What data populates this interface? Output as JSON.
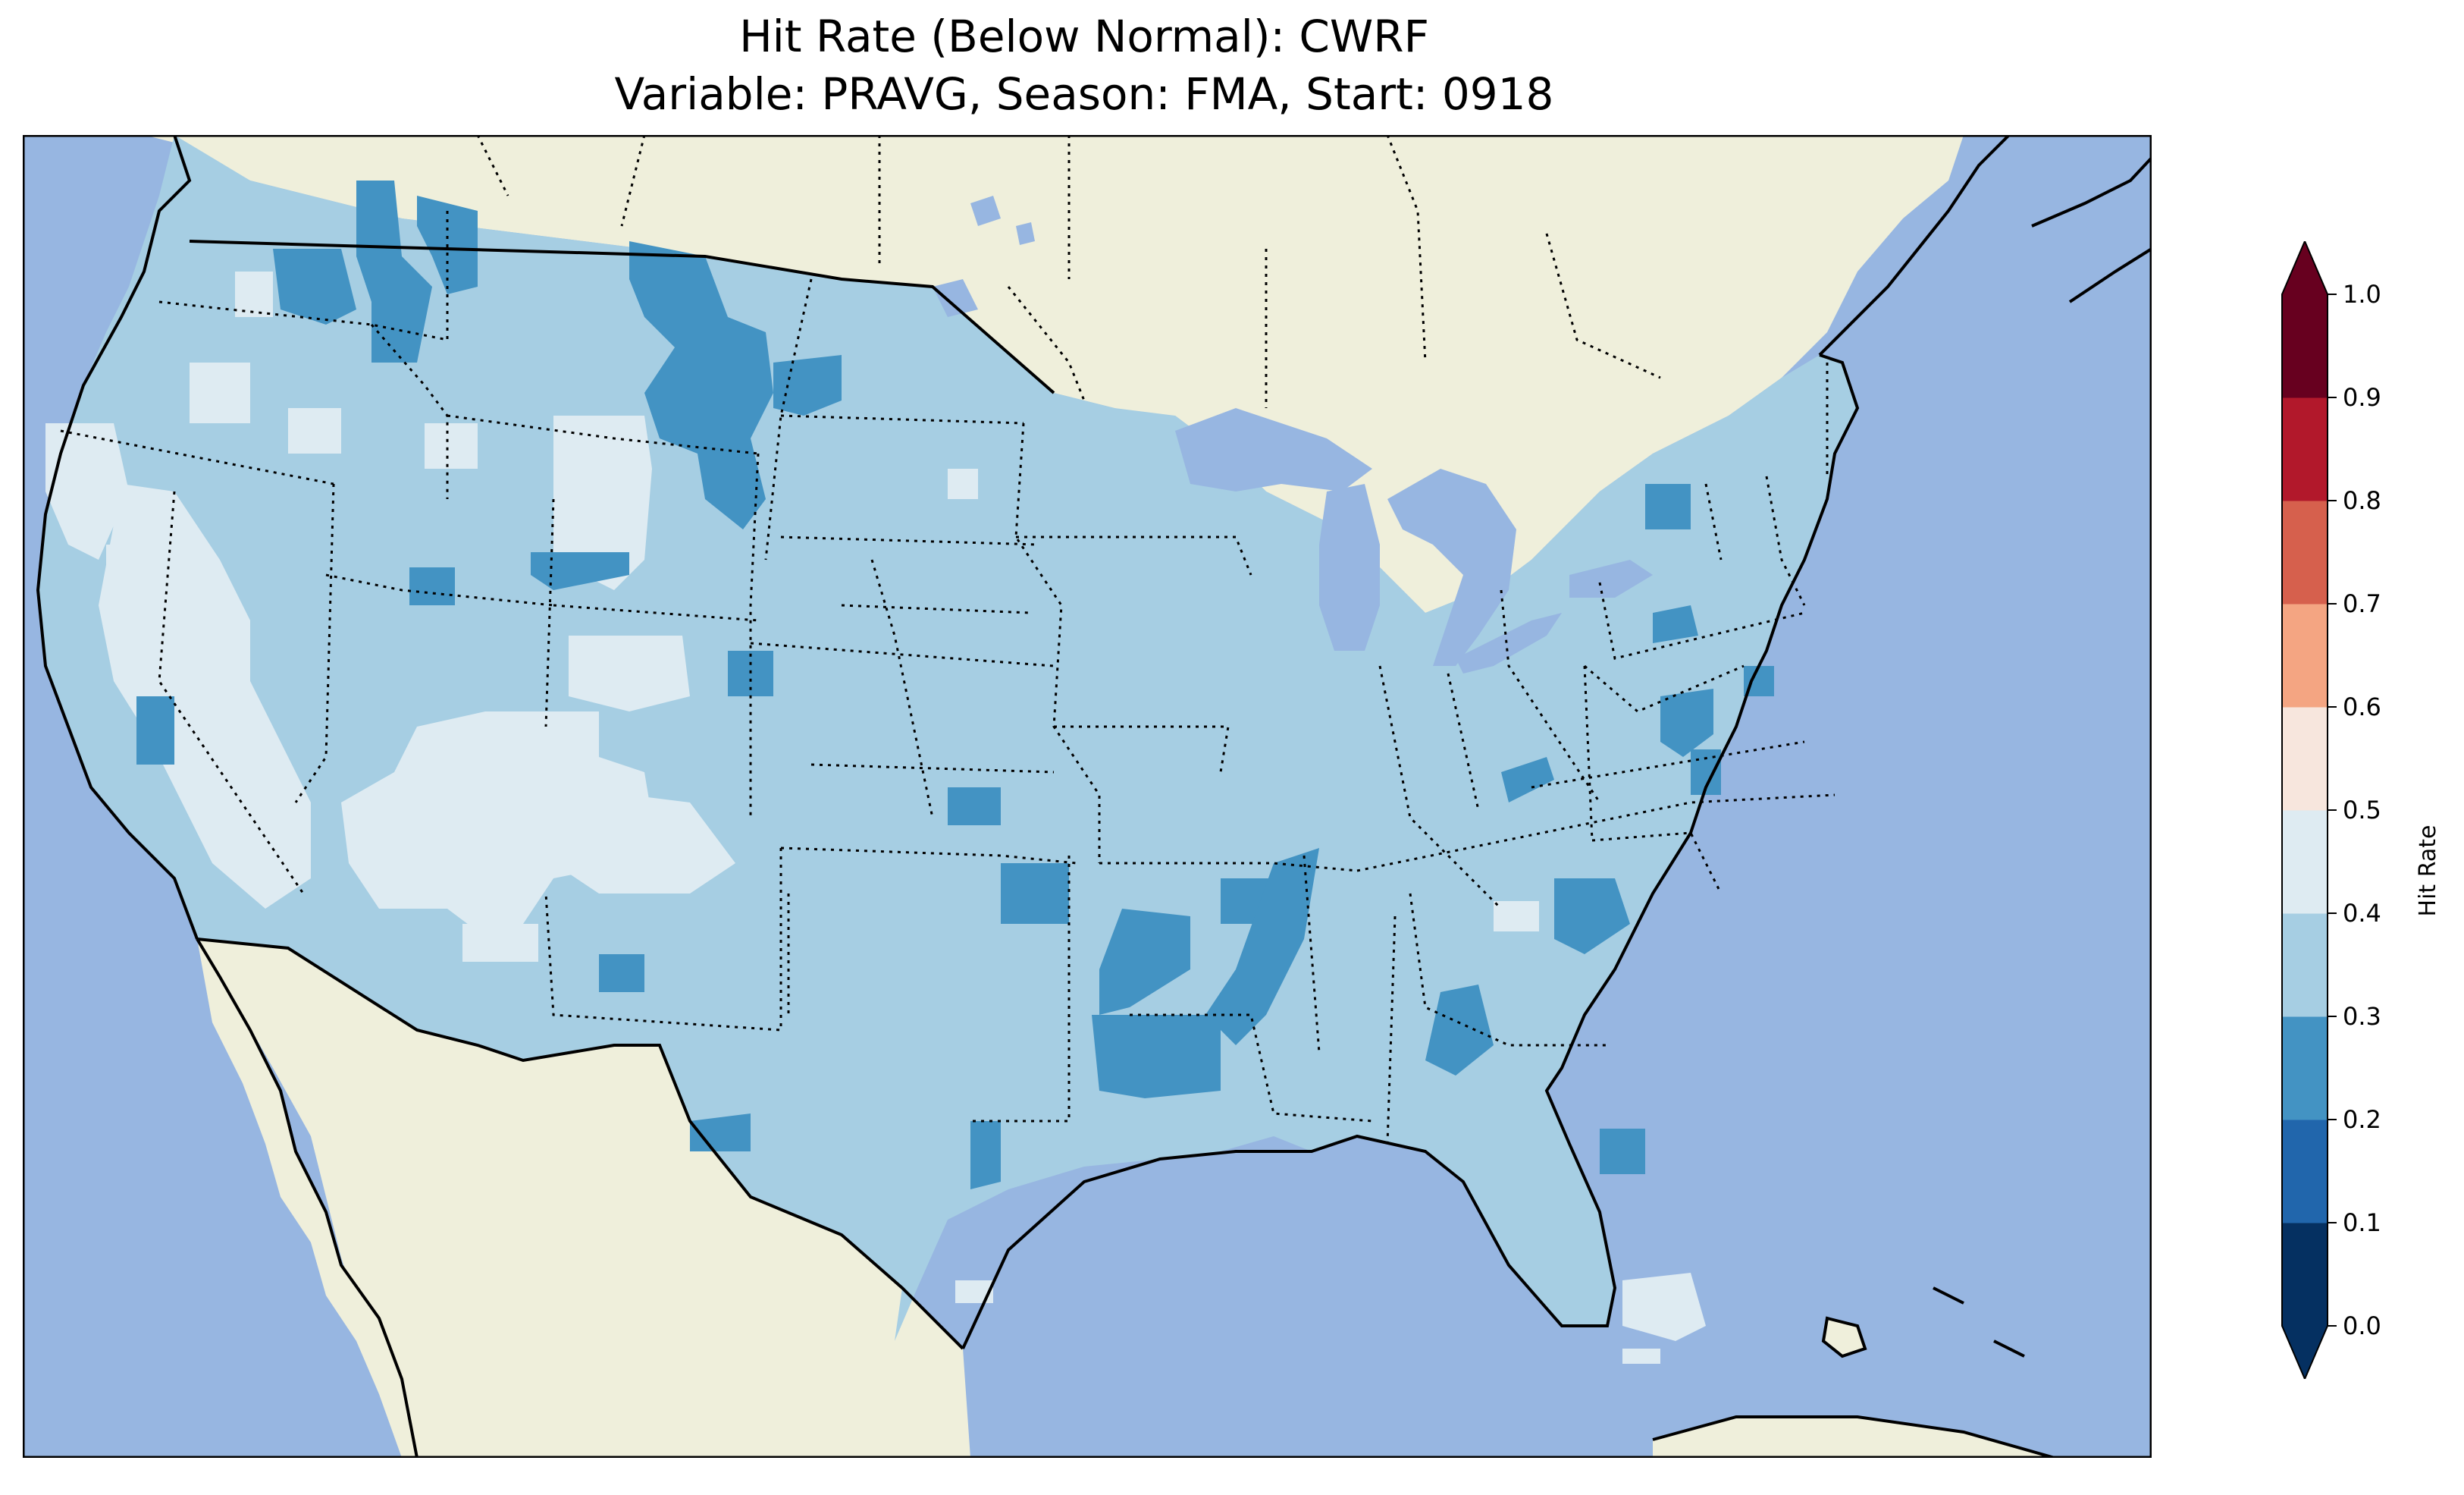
{
  "title": {
    "line1": "Hit Rate (Below Normal): CWRF",
    "line2": "Variable: PRAVG, Season: FMA, Start: 0918"
  },
  "colors": {
    "ocean": "#97b6e1",
    "land": "#efefdb",
    "borders": "#000000"
  },
  "colorbar": {
    "label": "Hit Rate",
    "ticks": [
      "0.0",
      "0.1",
      "0.2",
      "0.3",
      "0.4",
      "0.5",
      "0.6",
      "0.7",
      "0.8",
      "0.9",
      "1.0"
    ],
    "bins": [
      {
        "range": "0.0-0.1",
        "color": "#053061"
      },
      {
        "range": "0.1-0.2",
        "color": "#2166ac"
      },
      {
        "range": "0.2-0.3",
        "color": "#4393c3"
      },
      {
        "range": "0.3-0.4",
        "color": "#a6cee3"
      },
      {
        "range": "0.4-0.5",
        "color": "#deebf2"
      },
      {
        "range": "0.5-0.6",
        "color": "#f7e6dd"
      },
      {
        "range": "0.6-0.7",
        "color": "#f4a582"
      },
      {
        "range": "0.7-0.8",
        "color": "#d6604d"
      },
      {
        "range": "0.8-0.9",
        "color": "#b2182b"
      },
      {
        "range": "0.9-1.0",
        "color": "#67001f"
      }
    ],
    "extend": "both"
  },
  "field": {
    "dominant_value_range": "0.3-0.4",
    "low_regions_range": "0.2-0.3",
    "high_regions_range": "0.4-0.5"
  }
}
